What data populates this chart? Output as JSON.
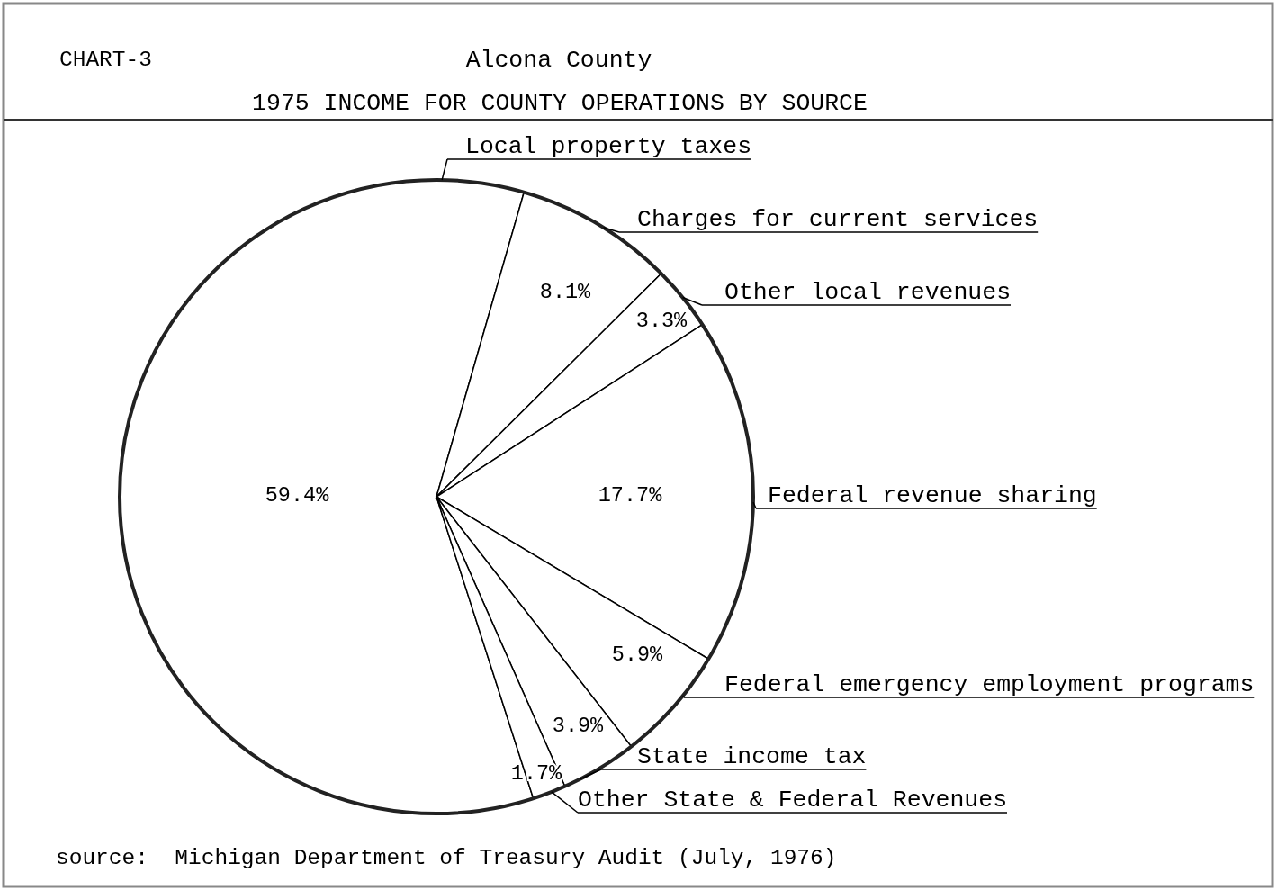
{
  "chart_data": {
    "type": "pie",
    "title": "Alcona County",
    "subtitle": "1975 INCOME FOR COUNTY OPERATIONS BY SOURCE",
    "categories": [
      "Local property taxes",
      "Charges for current services",
      "Other local revenues",
      "Federal revenue sharing",
      "Federal emergency employment programs",
      "State income tax",
      "Other State & Federal Revenues"
    ],
    "values": [
      59.4,
      8.1,
      3.3,
      17.7,
      5.9,
      3.9,
      1.7
    ],
    "value_labels": [
      "59.4%",
      "8.1%",
      "3.3%",
      "17.7%",
      "5.9%",
      "3.9%",
      "1.7%"
    ],
    "colors": [
      "#ffffff",
      "#ffffff",
      "#ffffff",
      "#ffffff",
      "#ffffff",
      "#ffffff",
      "#ffffff"
    ],
    "legend": "right",
    "annotations": [
      "CHART-3",
      "source:  Michigan Department of Treasury Audit (July, 1976)"
    ]
  }
}
